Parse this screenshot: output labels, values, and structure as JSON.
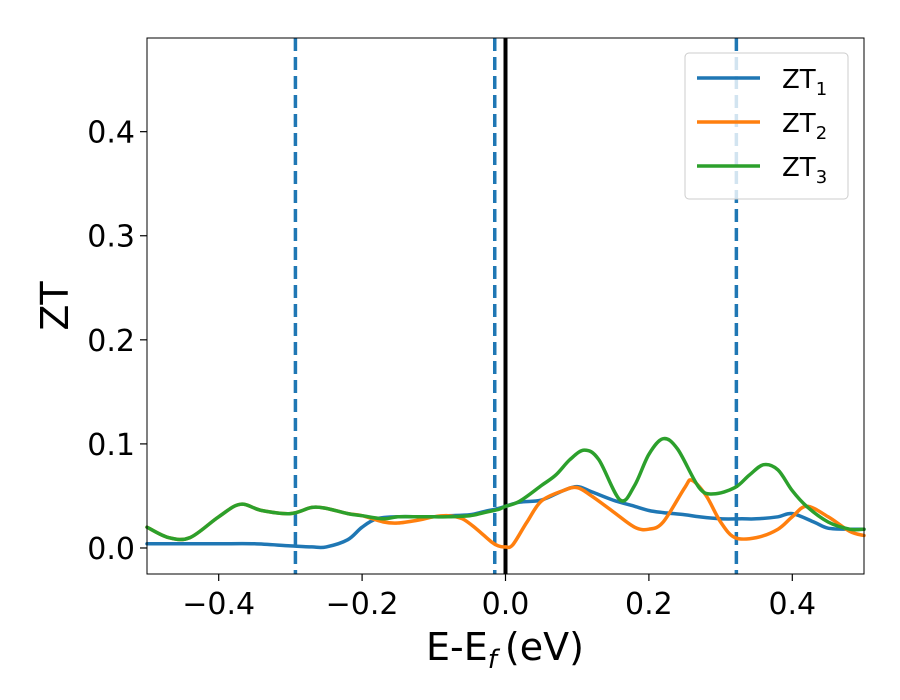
{
  "chart_data": {
    "type": "line",
    "xlabel": "E-E",
    "xlabel_sub": "f",
    "xlabel_unit": "(eV)",
    "ylabel": "ZT",
    "xlim": [
      -0.5,
      0.5
    ],
    "ylim": [
      -0.025,
      0.49
    ],
    "xticks": [
      -0.4,
      -0.2,
      0.0,
      0.2,
      0.4
    ],
    "xtick_labels": [
      "−0.4",
      "−0.2",
      "0.0",
      "0.2",
      "0.4"
    ],
    "yticks": [
      0.0,
      0.1,
      0.2,
      0.3,
      0.4
    ],
    "ytick_labels": [
      "0.0",
      "0.1",
      "0.2",
      "0.3",
      "0.4"
    ],
    "grid": false,
    "legend_position": "top-right",
    "vertical_lines": [
      {
        "x": -0.293,
        "style": "dashed",
        "color": "#1f77b4"
      },
      {
        "x": -0.015,
        "style": "dashed",
        "color": "#1f77b4"
      },
      {
        "x": 0.0,
        "style": "solid",
        "color": "#000000"
      },
      {
        "x": 0.322,
        "style": "dashed",
        "color": "#1f77b4"
      }
    ],
    "series": [
      {
        "name": "ZT",
        "name_sub": "1",
        "color": "#1f77b4",
        "x": [
          -0.5,
          -0.45,
          -0.4,
          -0.35,
          -0.3,
          -0.27,
          -0.25,
          -0.22,
          -0.2,
          -0.18,
          -0.15,
          -0.12,
          -0.1,
          -0.08,
          -0.05,
          -0.03,
          -0.01,
          0.0,
          0.02,
          0.05,
          0.08,
          0.1,
          0.12,
          0.15,
          0.18,
          0.2,
          0.22,
          0.25,
          0.27,
          0.3,
          0.33,
          0.35,
          0.38,
          0.4,
          0.43,
          0.45,
          0.48,
          0.5
        ],
        "y": [
          0.004,
          0.004,
          0.004,
          0.004,
          0.002,
          0.001,
          0.001,
          0.008,
          0.02,
          0.028,
          0.03,
          0.03,
          0.03,
          0.031,
          0.032,
          0.035,
          0.038,
          0.04,
          0.044,
          0.046,
          0.055,
          0.059,
          0.054,
          0.046,
          0.04,
          0.036,
          0.034,
          0.032,
          0.03,
          0.028,
          0.028,
          0.028,
          0.03,
          0.033,
          0.025,
          0.019,
          0.018,
          0.018
        ]
      },
      {
        "name": "ZT",
        "name_sub": "2",
        "color": "#ff7f0e",
        "x": [
          -0.5,
          -0.47,
          -0.44,
          -0.4,
          -0.37,
          -0.34,
          -0.3,
          -0.27,
          -0.25,
          -0.22,
          -0.2,
          -0.17,
          -0.15,
          -0.12,
          -0.1,
          -0.08,
          -0.06,
          -0.04,
          -0.02,
          -0.01,
          0.0,
          0.01,
          0.03,
          0.05,
          0.08,
          0.1,
          0.12,
          0.15,
          0.18,
          0.2,
          0.22,
          0.25,
          0.26,
          0.28,
          0.3,
          0.32,
          0.35,
          0.38,
          0.4,
          0.42,
          0.45,
          0.48,
          0.5
        ],
        "y": [
          0.02,
          0.01,
          0.01,
          0.03,
          0.042,
          0.036,
          0.033,
          0.039,
          0.038,
          0.033,
          0.031,
          0.025,
          0.024,
          0.027,
          0.03,
          0.031,
          0.028,
          0.018,
          0.006,
          0.002,
          0.001,
          0.003,
          0.025,
          0.045,
          0.055,
          0.058,
          0.05,
          0.035,
          0.02,
          0.018,
          0.025,
          0.058,
          0.065,
          0.05,
          0.025,
          0.01,
          0.01,
          0.018,
          0.03,
          0.04,
          0.03,
          0.016,
          0.012
        ]
      },
      {
        "name": "ZT",
        "name_sub": "3",
        "color": "#2ca02c",
        "x": [
          -0.5,
          -0.47,
          -0.44,
          -0.4,
          -0.37,
          -0.34,
          -0.3,
          -0.27,
          -0.25,
          -0.22,
          -0.2,
          -0.17,
          -0.15,
          -0.12,
          -0.1,
          -0.08,
          -0.05,
          -0.03,
          -0.01,
          0.0,
          0.02,
          0.05,
          0.07,
          0.09,
          0.11,
          0.13,
          0.16,
          0.18,
          0.2,
          0.22,
          0.24,
          0.27,
          0.29,
          0.32,
          0.34,
          0.36,
          0.38,
          0.4,
          0.42,
          0.45,
          0.48,
          0.5
        ],
        "y": [
          0.02,
          0.01,
          0.01,
          0.03,
          0.042,
          0.036,
          0.033,
          0.039,
          0.038,
          0.033,
          0.031,
          0.028,
          0.03,
          0.03,
          0.03,
          0.03,
          0.031,
          0.034,
          0.037,
          0.04,
          0.045,
          0.06,
          0.07,
          0.085,
          0.094,
          0.085,
          0.046,
          0.06,
          0.09,
          0.105,
          0.095,
          0.058,
          0.052,
          0.058,
          0.07,
          0.08,
          0.075,
          0.055,
          0.04,
          0.025,
          0.018,
          0.018
        ]
      }
    ]
  }
}
